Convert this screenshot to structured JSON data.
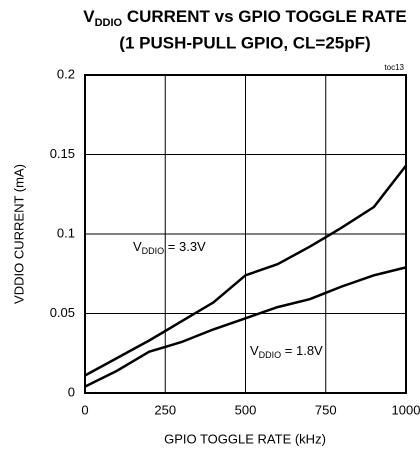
{
  "chart_data": {
    "type": "line",
    "title": [
      "V",
      "DDIO",
      " CURRENT vs GPIO TOGGLE RATE"
    ],
    "subtitle": "(1 PUSH-PULL GPIO, CL=25pF)",
    "note": "toc13",
    "x_label": "GPIO TOGGLE RATE (kHz)",
    "y_label": "VDDIO CURRENT  (mA)",
    "x": [
      0,
      100,
      200,
      250,
      300,
      400,
      500,
      600,
      700,
      750,
      800,
      900,
      1000
    ],
    "series": [
      {
        "name": [
          "V",
          "DDIO",
          " = 3.3V"
        ],
        "color": "#000000",
        "values": [
          0.011,
          0.022,
          0.033,
          0.039,
          0.045,
          0.057,
          0.074,
          0.081,
          0.092,
          0.098,
          0.104,
          0.117,
          0.143
        ]
      },
      {
        "name": [
          "V",
          "DDIO",
          " = 1.8V"
        ],
        "color": "#000000",
        "values": [
          0.004,
          0.014,
          0.026,
          0.029,
          0.032,
          0.04,
          0.047,
          0.054,
          0.059,
          0.063,
          0.067,
          0.074,
          0.079
        ]
      }
    ],
    "xlim": [
      0,
      1000
    ],
    "xticks": [
      0,
      250,
      500,
      750,
      1000
    ],
    "ylim": [
      0,
      0.2
    ],
    "yticks": [
      0,
      0.05,
      0.1,
      0.15,
      0.2
    ],
    "grid": true
  }
}
